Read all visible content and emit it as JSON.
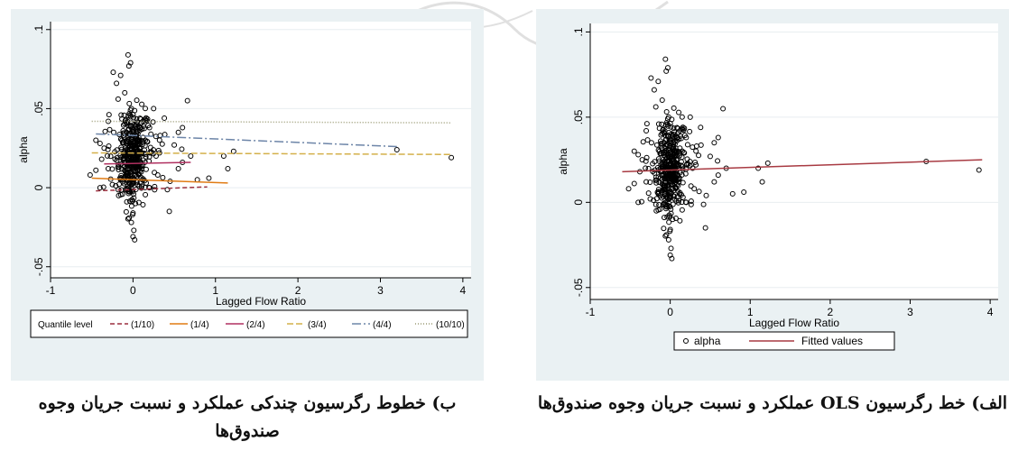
{
  "captions": {
    "left": "ب) خطوط رگرسیون چندکی عملکرد و نسبت جریان وجوه صندوق‌ها",
    "right": "الف) خط رگرسیون OLS عملکرد و نسبت جریان وجوه صندوق‌ها"
  },
  "chart_data": [
    {
      "type": "scatter",
      "title": "",
      "xlabel": "Lagged Flow Ratio",
      "ylabel": "alpha",
      "xlim": [
        -1,
        4.1
      ],
      "ylim": [
        -0.057,
        0.105
      ],
      "xticks": [
        -1,
        0,
        1,
        2,
        3,
        4
      ],
      "yticks": [
        -0.05,
        0,
        0.05,
        0.1
      ],
      "xtick_labels": [
        "-1",
        "0",
        "1",
        "2",
        "3",
        "4"
      ],
      "ytick_labels": [
        "-.05",
        "0",
        ".05",
        ".1"
      ],
      "grid": "horizontal",
      "legend_position": "bottom",
      "legend_title": "Quantile level",
      "series": [
        {
          "name": "(1/10)",
          "color": "#9b2f3e",
          "dash": "5,3",
          "x": [
            -0.45,
            0.9
          ],
          "y": [
            -0.002,
            0.0005
          ]
        },
        {
          "name": "(1/4)",
          "color": "#e07b14",
          "dash": "",
          "x": [
            -0.5,
            1.15
          ],
          "y": [
            0.006,
            0.003
          ]
        },
        {
          "name": "(2/4)",
          "color": "#b03060",
          "dash": "",
          "x": [
            -0.35,
            0.7
          ],
          "y": [
            0.015,
            0.016
          ]
        },
        {
          "name": "(3/4)",
          "color": "#d4b04a",
          "dash": "7,3",
          "x": [
            -0.5,
            3.85
          ],
          "y": [
            0.022,
            0.021
          ]
        },
        {
          "name": "(4/4)",
          "color": "#6d85a8",
          "dash": "10,3,2,3",
          "x": [
            -0.45,
            3.2
          ],
          "y": [
            0.034,
            0.026
          ]
        },
        {
          "name": "(10/10)",
          "color": "#9a9a74",
          "dash": "1,2",
          "x": [
            -0.5,
            3.85
          ],
          "y": [
            0.042,
            0.041
          ]
        }
      ],
      "points": [
        {
          "x": 3.2,
          "y": 0.024
        },
        {
          "x": 3.86,
          "y": 0.019
        },
        {
          "x": 0.66,
          "y": 0.055
        },
        {
          "x": -0.06,
          "y": 0.084
        },
        {
          "x": -0.03,
          "y": 0.079
        },
        {
          "x": -0.05,
          "y": 0.077
        },
        {
          "x": -0.24,
          "y": 0.073
        },
        {
          "x": -0.15,
          "y": 0.071
        },
        {
          "x": -0.2,
          "y": 0.066
        },
        {
          "x": -0.1,
          "y": 0.06
        },
        {
          "x": -0.18,
          "y": 0.056
        },
        {
          "x": -0.02,
          "y": 0.05
        },
        {
          "x": -0.3,
          "y": 0.042
        },
        {
          "x": -0.45,
          "y": 0.03
        },
        {
          "x": -0.4,
          "y": 0.028
        },
        {
          "x": -0.35,
          "y": 0.025
        },
        {
          "x": -0.38,
          "y": 0.018
        },
        {
          "x": -0.52,
          "y": 0.008
        },
        {
          "x": -0.45,
          "y": 0.011
        },
        {
          "x": -0.3,
          "y": 0.012
        },
        {
          "x": -0.25,
          "y": 0.002
        },
        {
          "x": -0.4,
          "y": 0.0
        },
        {
          "x": -0.15,
          "y": 0.005
        },
        {
          "x": 0.02,
          "y": -0.033
        },
        {
          "x": 0.0,
          "y": -0.031
        },
        {
          "x": 0.01,
          "y": -0.027
        },
        {
          "x": -0.02,
          "y": -0.022
        },
        {
          "x": 0.0,
          "y": -0.016
        },
        {
          "x": 0.03,
          "y": -0.01
        },
        {
          "x": 0.44,
          "y": -0.015
        },
        {
          "x": 0.2,
          "y": 0.0
        },
        {
          "x": 0.3,
          "y": 0.008
        },
        {
          "x": 0.45,
          "y": 0.004
        },
        {
          "x": 0.55,
          "y": 0.012
        },
        {
          "x": 0.6,
          "y": 0.016
        },
        {
          "x": 0.6,
          "y": 0.038
        },
        {
          "x": 0.55,
          "y": 0.035
        },
        {
          "x": 0.5,
          "y": 0.027
        },
        {
          "x": 0.7,
          "y": 0.02
        },
        {
          "x": 0.78,
          "y": 0.005
        },
        {
          "x": 0.92,
          "y": 0.006
        },
        {
          "x": 1.1,
          "y": 0.02
        },
        {
          "x": 1.15,
          "y": 0.012
        },
        {
          "x": 1.22,
          "y": 0.023
        },
        {
          "x": 0.38,
          "y": 0.044
        },
        {
          "x": 0.33,
          "y": 0.033
        },
        {
          "x": 0.25,
          "y": 0.05
        },
        {
          "x": 0.28,
          "y": 0.02
        },
        {
          "x": 0.15,
          "y": 0.03
        },
        {
          "x": 0.12,
          "y": 0.042
        },
        {
          "x": 0.1,
          "y": 0.01
        },
        {
          "x": -0.12,
          "y": 0.036
        },
        {
          "x": -0.1,
          "y": 0.02
        },
        {
          "x": -0.08,
          "y": 0.01
        },
        {
          "x": 0.08,
          "y": 0.025
        },
        {
          "x": 0.2,
          "y": 0.038
        }
      ],
      "dense_cloud": {
        "x_center": 0.0,
        "x_spread": 0.12,
        "y_center": 0.02,
        "y_spread": 0.014,
        "count": 420
      }
    },
    {
      "type": "scatter",
      "title": "",
      "xlabel": "Lagged Flow Ratio",
      "ylabel": "alpha",
      "xlim": [
        -1,
        4.1
      ],
      "ylim": [
        -0.057,
        0.105
      ],
      "xticks": [
        -1,
        0,
        1,
        2,
        3,
        4
      ],
      "yticks": [
        -0.05,
        0,
        0.05,
        0.1
      ],
      "xtick_labels": [
        "-1",
        "0",
        "1",
        "2",
        "3",
        "4"
      ],
      "ytick_labels": [
        "-.05",
        "0",
        ".05",
        ".1"
      ],
      "grid": "horizontal",
      "legend_position": "bottom",
      "series": [
        {
          "name": "alpha",
          "kind": "points"
        },
        {
          "name": "Fitted values",
          "kind": "line",
          "color": "#a83a42",
          "x": [
            -0.6,
            3.9
          ],
          "y": [
            0.018,
            0.025
          ]
        }
      ],
      "points": [
        {
          "x": 3.2,
          "y": 0.024
        },
        {
          "x": 3.86,
          "y": 0.019
        },
        {
          "x": 0.66,
          "y": 0.055
        },
        {
          "x": -0.06,
          "y": 0.084
        },
        {
          "x": -0.03,
          "y": 0.079
        },
        {
          "x": -0.05,
          "y": 0.077
        },
        {
          "x": -0.24,
          "y": 0.073
        },
        {
          "x": -0.15,
          "y": 0.071
        },
        {
          "x": -0.2,
          "y": 0.066
        },
        {
          "x": -0.1,
          "y": 0.06
        },
        {
          "x": -0.18,
          "y": 0.056
        },
        {
          "x": -0.02,
          "y": 0.05
        },
        {
          "x": -0.3,
          "y": 0.042
        },
        {
          "x": -0.45,
          "y": 0.03
        },
        {
          "x": -0.4,
          "y": 0.028
        },
        {
          "x": -0.35,
          "y": 0.025
        },
        {
          "x": -0.38,
          "y": 0.018
        },
        {
          "x": -0.52,
          "y": 0.008
        },
        {
          "x": -0.45,
          "y": 0.011
        },
        {
          "x": -0.3,
          "y": 0.012
        },
        {
          "x": -0.25,
          "y": 0.002
        },
        {
          "x": -0.4,
          "y": 0.0
        },
        {
          "x": -0.15,
          "y": 0.005
        },
        {
          "x": 0.02,
          "y": -0.033
        },
        {
          "x": 0.0,
          "y": -0.031
        },
        {
          "x": 0.01,
          "y": -0.027
        },
        {
          "x": -0.02,
          "y": -0.022
        },
        {
          "x": 0.0,
          "y": -0.016
        },
        {
          "x": 0.03,
          "y": -0.01
        },
        {
          "x": 0.44,
          "y": -0.015
        },
        {
          "x": 0.2,
          "y": 0.0
        },
        {
          "x": 0.3,
          "y": 0.008
        },
        {
          "x": 0.45,
          "y": 0.004
        },
        {
          "x": 0.55,
          "y": 0.012
        },
        {
          "x": 0.6,
          "y": 0.016
        },
        {
          "x": 0.6,
          "y": 0.038
        },
        {
          "x": 0.55,
          "y": 0.035
        },
        {
          "x": 0.5,
          "y": 0.027
        },
        {
          "x": 0.7,
          "y": 0.02
        },
        {
          "x": 0.78,
          "y": 0.005
        },
        {
          "x": 0.92,
          "y": 0.006
        },
        {
          "x": 1.1,
          "y": 0.02
        },
        {
          "x": 1.15,
          "y": 0.012
        },
        {
          "x": 1.22,
          "y": 0.023
        },
        {
          "x": 0.38,
          "y": 0.044
        },
        {
          "x": 0.33,
          "y": 0.033
        },
        {
          "x": 0.25,
          "y": 0.05
        },
        {
          "x": 0.28,
          "y": 0.02
        },
        {
          "x": 0.15,
          "y": 0.03
        },
        {
          "x": 0.12,
          "y": 0.042
        },
        {
          "x": 0.1,
          "y": 0.01
        },
        {
          "x": -0.12,
          "y": 0.036
        },
        {
          "x": -0.1,
          "y": 0.02
        },
        {
          "x": -0.08,
          "y": 0.01
        },
        {
          "x": 0.08,
          "y": 0.025
        },
        {
          "x": 0.2,
          "y": 0.038
        }
      ],
      "dense_cloud": {
        "x_center": 0.0,
        "x_spread": 0.12,
        "y_center": 0.02,
        "y_spread": 0.014,
        "count": 420
      }
    }
  ]
}
